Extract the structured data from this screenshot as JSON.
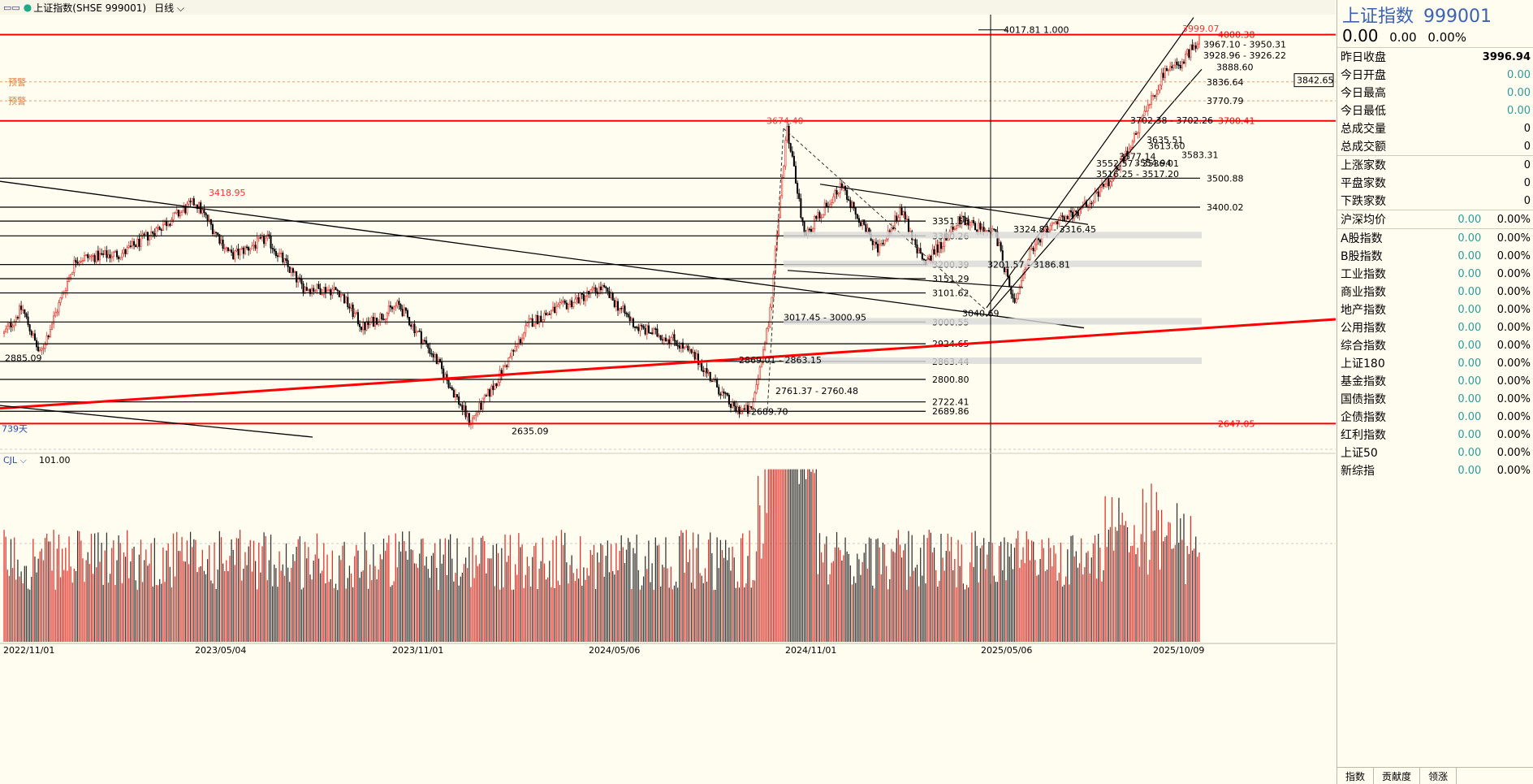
{
  "header": {
    "title": "上证指数(SHSE 999001)",
    "period": "日线"
  },
  "chart_data": {
    "type": "candlestick",
    "title": "上证指数(SHSE 999001)",
    "price_range": [
      2600,
      4070
    ],
    "x_ticks": [
      "2022/11/01",
      "2023/05/04",
      "2023/11/01",
      "2024/05/06",
      "2024/11/01",
      "2025/05/06",
      "2025/10/09"
    ],
    "highs_lows": [
      "3418.95",
      "2885.09",
      "2635.09",
      "3674.40",
      "3040.69",
      "3999.07"
    ],
    "levels": [
      {
        "label": "4000.38",
        "color": "red"
      },
      {
        "label": "3700.41",
        "color": "red"
      },
      {
        "label": "3500.88",
        "color": "black"
      },
      {
        "label": "3400.02",
        "color": "black"
      },
      {
        "label": "3351.56",
        "color": "black"
      },
      {
        "label": "3300.26",
        "color": "black"
      },
      {
        "label": "3200.39",
        "color": "black"
      },
      {
        "label": "3151.29",
        "color": "black"
      },
      {
        "label": "3101.62",
        "color": "black"
      },
      {
        "label": "3000.55",
        "color": "black"
      },
      {
        "label": "2924.65",
        "color": "black"
      },
      {
        "label": "2863.44",
        "color": "black"
      },
      {
        "label": "2800.80",
        "color": "black"
      },
      {
        "label": "2722.41",
        "color": "black"
      },
      {
        "label": "2689.86",
        "color": "black"
      },
      {
        "label": "2647.05",
        "color": "red"
      }
    ],
    "range_labels": [
      "3967.10 - 3950.31",
      "3928.96 - 3926.22",
      "3888.60",
      "3836.64",
      "3770.79",
      "3702.38 - 3702.26",
      "3635.51",
      "3613.60",
      "3577.14",
      "3583.31",
      "3554.94",
      "3552.57 - 3536.01",
      "3516.25 - 3517.20",
      "3324.81 - 3316.45",
      "3201.57 - 3186.81",
      "3017.45 - 3000.95",
      "2869.01 - 2863.15",
      "2761.37 - 2760.48",
      "2689.70"
    ],
    "alerts": [
      "预警",
      "预警"
    ],
    "cursor_label": "4017.81  1.000",
    "price_tag": "3842.65",
    "days_label": "739天",
    "volume_label": "CJL",
    "volume_value": "101.00"
  },
  "panel": {
    "name": "上证指数",
    "code": "999001",
    "price": "0.00",
    "change": "0.00",
    "pct": "0.00%",
    "stats": [
      {
        "k": "昨日收盘",
        "v": "3996.94"
      },
      {
        "k": "今日开盘",
        "v": "0.00"
      },
      {
        "k": "今日最高",
        "v": "0.00"
      },
      {
        "k": "今日最低",
        "v": "0.00"
      },
      {
        "k": "总成交量",
        "v": "0"
      },
      {
        "k": "总成交额",
        "v": "0"
      }
    ],
    "breadth": [
      {
        "k": "上涨家数",
        "v": "0"
      },
      {
        "k": "平盘家数",
        "v": "0"
      },
      {
        "k": "下跌家数",
        "v": "0"
      }
    ],
    "avg": {
      "k": "沪深均价",
      "v": "0.00",
      "p": "0.00%"
    },
    "indices": [
      {
        "k": "A股指数",
        "v": "0.00",
        "p": "0.00%"
      },
      {
        "k": "B股指数",
        "v": "0.00",
        "p": "0.00%"
      },
      {
        "k": "工业指数",
        "v": "0.00",
        "p": "0.00%"
      },
      {
        "k": "商业指数",
        "v": "0.00",
        "p": "0.00%"
      },
      {
        "k": "地产指数",
        "v": "0.00",
        "p": "0.00%"
      },
      {
        "k": "公用指数",
        "v": "0.00",
        "p": "0.00%"
      },
      {
        "k": "综合指数",
        "v": "0.00",
        "p": "0.00%"
      },
      {
        "k": "上证180",
        "v": "0.00",
        "p": "0.00%"
      },
      {
        "k": "基金指数",
        "v": "0.00",
        "p": "0.00%"
      },
      {
        "k": "国债指数",
        "v": "0.00",
        "p": "0.00%"
      },
      {
        "k": "企债指数",
        "v": "0.00",
        "p": "0.00%"
      },
      {
        "k": "红利指数",
        "v": "0.00",
        "p": "0.00%"
      },
      {
        "k": "上证50",
        "v": "0.00",
        "p": "0.00%"
      },
      {
        "k": "新综指",
        "v": "0.00",
        "p": "0.00%"
      }
    ],
    "tabs": [
      "指数",
      "贡献度",
      "领涨"
    ]
  }
}
